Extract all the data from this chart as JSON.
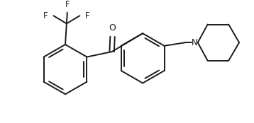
{
  "bg_color": "#ffffff",
  "line_color": "#1a1a1a",
  "line_width": 1.4,
  "font_size": 8.5,
  "figsize": [
    3.58,
    1.74
  ],
  "dpi": 100,
  "xlim": [
    0,
    358
  ],
  "ylim": [
    0,
    174
  ]
}
